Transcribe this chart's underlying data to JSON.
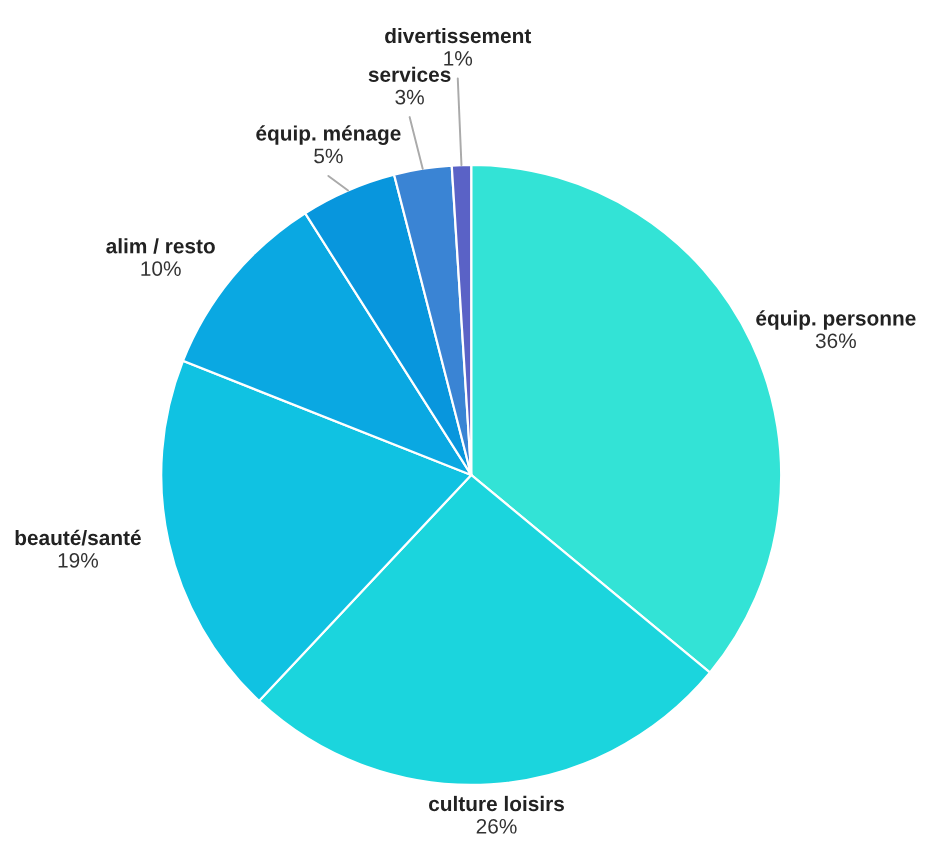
{
  "chart_data": {
    "type": "pie",
    "categories": [
      "équip. personne",
      "culture loisirs",
      "beauté/santé",
      "alim / resto",
      "équip. ménage",
      "services",
      "divertissement"
    ],
    "values": [
      36,
      26,
      19,
      10,
      5,
      3,
      1
    ],
    "value_labels": [
      "36%",
      "26%",
      "19%",
      "10%",
      "5%",
      "3%",
      "1%"
    ],
    "colors": [
      "#33e3d6",
      "#1bd5dd",
      "#10c2e2",
      "#0aa8e2",
      "#0896dd",
      "#3a84d4",
      "#5a62c6"
    ],
    "legend": false
  }
}
